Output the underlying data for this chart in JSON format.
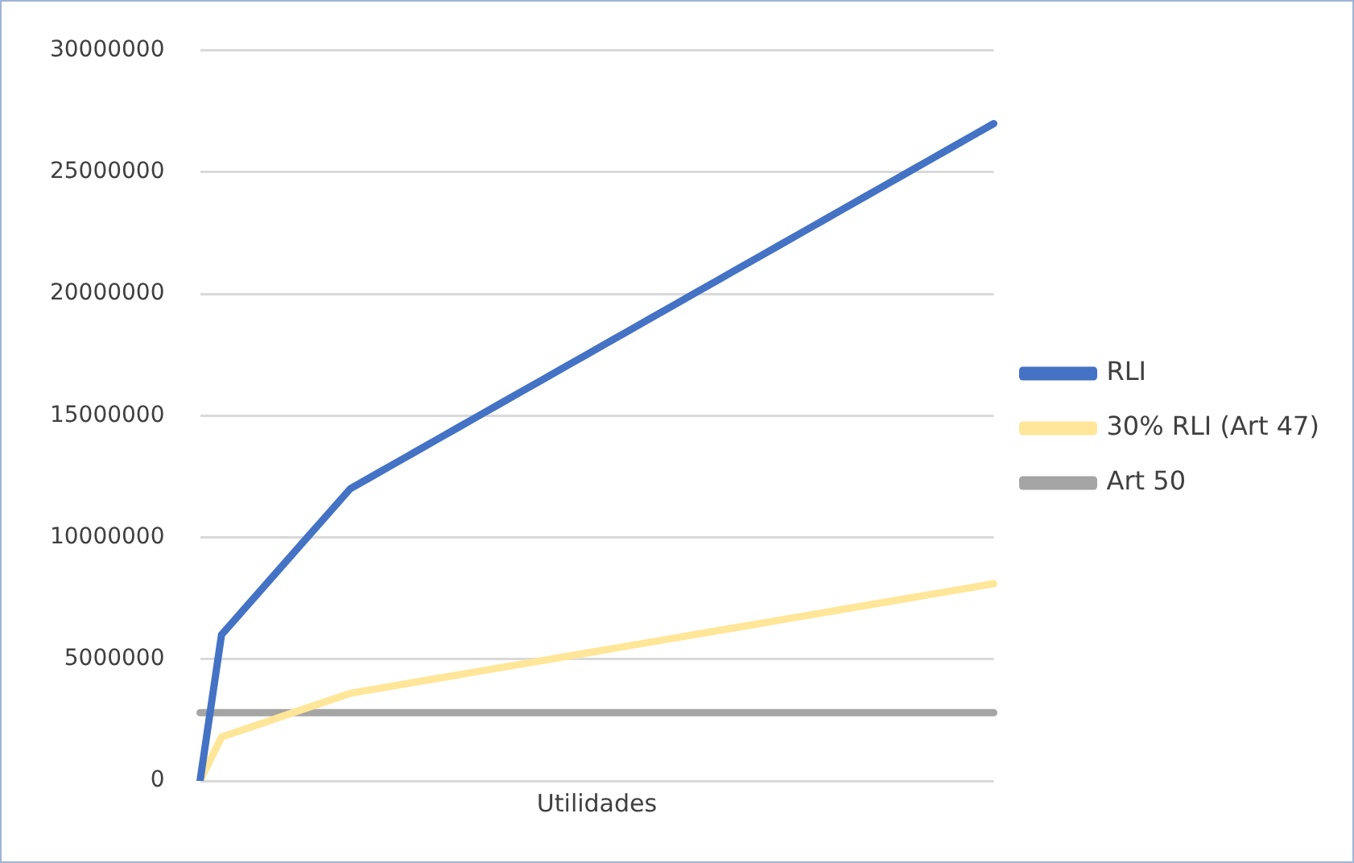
{
  "chart_data": {
    "type": "line",
    "xlabel": "Utilidades",
    "categories": [
      null,
      null,
      null,
      null,
      null,
      null,
      null,
      null,
      null,
      null,
      null,
      null,
      null,
      null,
      null,
      null,
      null,
      null,
      null,
      null,
      null,
      null,
      null,
      null,
      null,
      null,
      null,
      null,
      null,
      null,
      null,
      null,
      null,
      null,
      null,
      null,
      null,
      null
    ],
    "series": [
      {
        "name": "RLI",
        "color": "#4472c4",
        "values": [
          0,
          6000000,
          7000000,
          8000000,
          9000000,
          10000000,
          11000000,
          12000000,
          12500000,
          13000000,
          13500000,
          14000000,
          14500000,
          15000000,
          15500000,
          16000000,
          16500000,
          17000000,
          17500000,
          18000000,
          18500000,
          19000000,
          19500000,
          20000000,
          20500000,
          21000000,
          21500000,
          22000000,
          22500000,
          23000000,
          23500000,
          24000000,
          24500000,
          25000000,
          25500000,
          26000000,
          26500000,
          27000000
        ]
      },
      {
        "name": "30% RLI (Art 47)",
        "color": "#ffe699",
        "values": [
          0,
          1800000,
          2100000,
          2400000,
          2700000,
          3000000,
          3300000,
          3600000,
          3750000,
          3900000,
          4050000,
          4200000,
          4350000,
          4500000,
          4650000,
          4800000,
          4950000,
          5100000,
          5250000,
          5400000,
          5550000,
          5700000,
          5850000,
          6000000,
          6150000,
          6300000,
          6450000,
          6600000,
          6750000,
          6900000,
          7050000,
          7200000,
          7350000,
          7500000,
          7650000,
          7800000,
          7950000,
          8100000
        ]
      },
      {
        "name": "Art 50",
        "color": "#a5a5a5",
        "values": [
          2800000,
          2800000,
          2800000,
          2800000,
          2800000,
          2800000,
          2800000,
          2800000,
          2800000,
          2800000,
          2800000,
          2800000,
          2800000,
          2800000,
          2800000,
          2800000,
          2800000,
          2800000,
          2800000,
          2800000,
          2800000,
          2800000,
          2800000,
          2800000,
          2800000,
          2800000,
          2800000,
          2800000,
          2800000,
          2800000,
          2800000,
          2800000,
          2800000,
          2800000,
          2800000,
          2800000,
          2800000,
          2800000
        ]
      }
    ],
    "ylim": [
      0,
      30000000
    ],
    "yticks": [
      0,
      5000000,
      10000000,
      15000000,
      20000000,
      25000000,
      30000000
    ],
    "grid": "y",
    "legend": "right",
    "marker": "none",
    "line_style": "solid"
  }
}
